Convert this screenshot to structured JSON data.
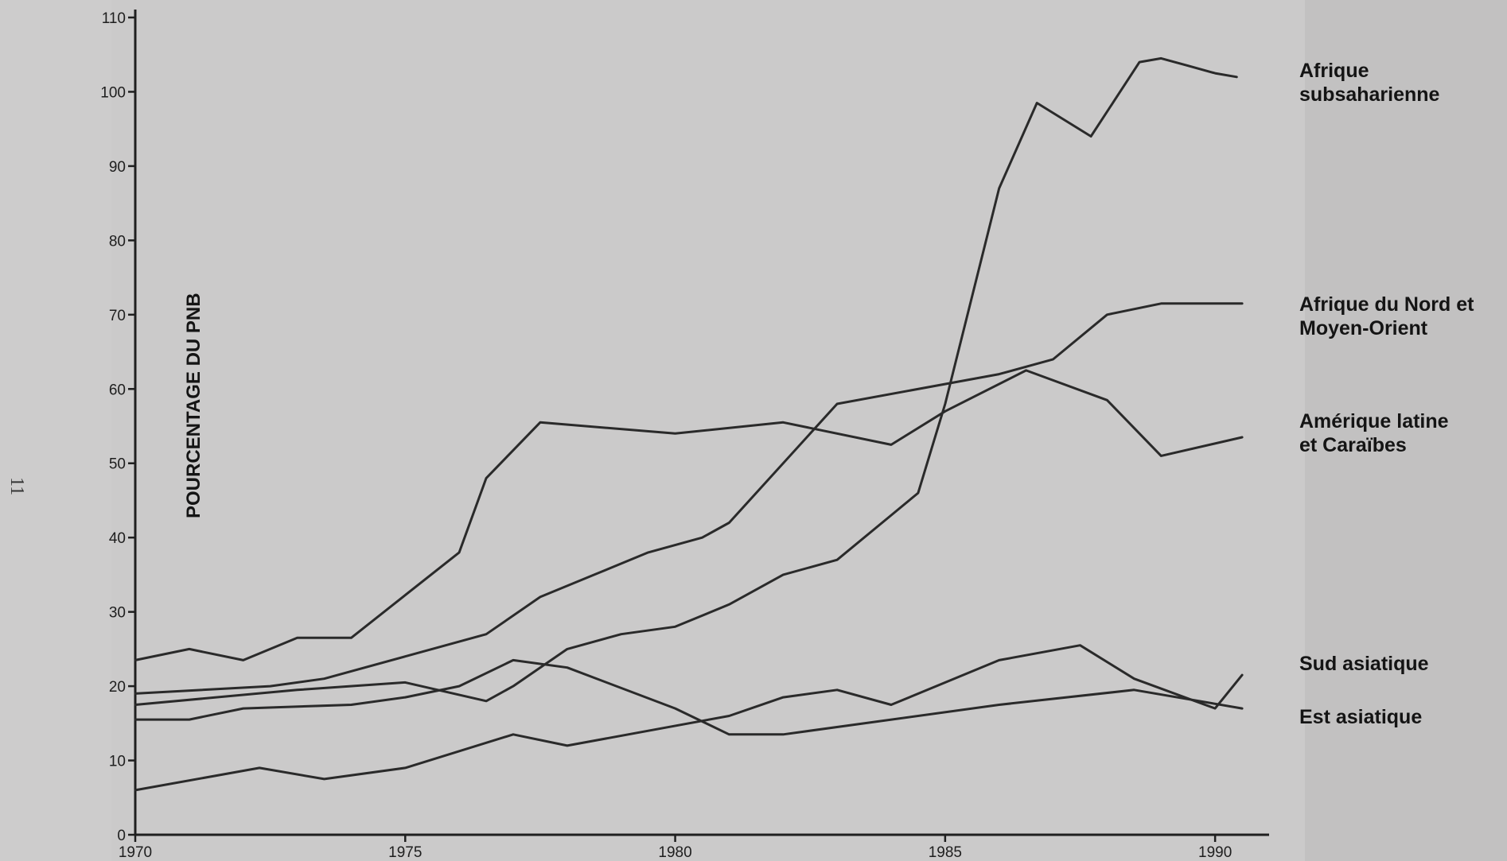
{
  "page_number": "11",
  "chart_data": {
    "type": "line",
    "ylabel": "POURCENTAGE DU PNB",
    "xlabel": "",
    "xlim": [
      1970,
      1991
    ],
    "ylim": [
      0,
      110
    ],
    "x_ticks": [
      "1970",
      "1975",
      "1980",
      "1985",
      "1990"
    ],
    "y_ticks": [
      "0",
      "10",
      "20",
      "30",
      "40",
      "50",
      "60",
      "70",
      "80",
      "90",
      "100",
      "110"
    ],
    "grid": false,
    "series": [
      {
        "name": "Afrique subsaharienne",
        "label_lines": [
          "Afrique",
          "subsaharienne"
        ],
        "points": [
          [
            1970,
            17.5
          ],
          [
            1973,
            19.5
          ],
          [
            1975,
            20.5
          ],
          [
            1976.5,
            18
          ],
          [
            1977,
            20
          ],
          [
            1978,
            25
          ],
          [
            1979,
            27
          ],
          [
            1980,
            28
          ],
          [
            1981,
            31
          ],
          [
            1982,
            35
          ],
          [
            1983,
            37
          ],
          [
            1984,
            43
          ],
          [
            1984.5,
            46
          ],
          [
            1985,
            58
          ],
          [
            1986,
            87
          ],
          [
            1986.7,
            98.5
          ],
          [
            1987.7,
            94
          ],
          [
            1988.6,
            104
          ],
          [
            1989,
            104.5
          ],
          [
            1989.5,
            103.5
          ],
          [
            1990,
            102.5
          ],
          [
            1990.4,
            102
          ]
        ]
      },
      {
        "name": "Afrique du Nord et Moyen-Orient",
        "label_lines": [
          "Afrique du Nord et",
          "Moyen-Orient"
        ],
        "points": [
          [
            1970,
            19
          ],
          [
            1972.5,
            20
          ],
          [
            1973.5,
            21
          ],
          [
            1975,
            24
          ],
          [
            1976.5,
            27
          ],
          [
            1977.5,
            32
          ],
          [
            1978.5,
            35
          ],
          [
            1979.5,
            38
          ],
          [
            1980.5,
            40
          ],
          [
            1981,
            42
          ],
          [
            1983,
            58
          ],
          [
            1986,
            62
          ],
          [
            1987,
            64
          ],
          [
            1988,
            70
          ],
          [
            1989,
            71.5
          ],
          [
            1990.5,
            71.5
          ]
        ]
      },
      {
        "name": "Amérique latine et Caraïbes",
        "label_lines": [
          "Amérique latine",
          "et Caraïbes"
        ],
        "points": [
          [
            1970,
            23.5
          ],
          [
            1971,
            25
          ],
          [
            1972,
            23.5
          ],
          [
            1973,
            26.5
          ],
          [
            1974,
            26.5
          ],
          [
            1976,
            38
          ],
          [
            1976.5,
            48
          ],
          [
            1977.5,
            55.5
          ],
          [
            1980,
            54
          ],
          [
            1982,
            55.5
          ],
          [
            1984,
            52.5
          ],
          [
            1985,
            57
          ],
          [
            1986.5,
            62.5
          ],
          [
            1988,
            58.5
          ],
          [
            1989,
            51
          ],
          [
            1990.5,
            53.5
          ]
        ]
      },
      {
        "name": "Sud asiatique",
        "label_lines": [
          "Sud asiatique"
        ],
        "points": [
          [
            1970,
            6
          ],
          [
            1972.3,
            9
          ],
          [
            1973.5,
            7.5
          ],
          [
            1975,
            9
          ],
          [
            1977,
            13.5
          ],
          [
            1978,
            12
          ],
          [
            1981,
            16
          ],
          [
            1982,
            18.5
          ],
          [
            1983,
            19.5
          ],
          [
            1984,
            17.5
          ],
          [
            1986,
            23.5
          ],
          [
            1987.5,
            25.5
          ],
          [
            1988.5,
            21
          ],
          [
            1990,
            17
          ],
          [
            1990.5,
            21.5
          ]
        ]
      },
      {
        "name": "Est asiatique",
        "label_lines": [
          "Est asiatique"
        ],
        "points": [
          [
            1970,
            15.5
          ],
          [
            1971,
            15.5
          ],
          [
            1972,
            17
          ],
          [
            1974,
            17.5
          ],
          [
            1975,
            18.5
          ],
          [
            1976,
            20
          ],
          [
            1977,
            23.5
          ],
          [
            1978,
            22.5
          ],
          [
            1980,
            17
          ],
          [
            1981,
            13.5
          ],
          [
            1982,
            13.5
          ],
          [
            1986,
            17.5
          ],
          [
            1988.5,
            19.5
          ],
          [
            1990.5,
            17
          ]
        ]
      }
    ]
  }
}
